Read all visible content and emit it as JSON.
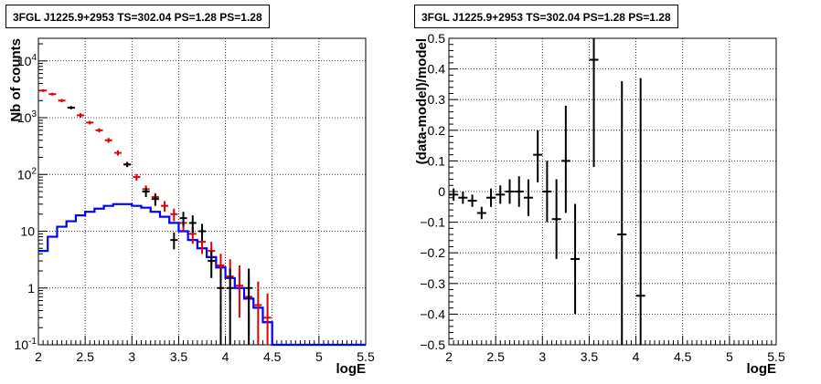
{
  "chart_data": [
    {
      "type": "histogram",
      "title": "3FGL J1225.9+2953 TS=302.04 PS=1.28 PS=1.28",
      "xlabel": "logE",
      "ylabel": "Nb of counts",
      "xlim": [
        2,
        5.5
      ],
      "ylim": [
        0.1,
        25000
      ],
      "yscale": "log",
      "grid": true,
      "x_ticks": [
        "2",
        "2.5",
        "3",
        "3.5",
        "4",
        "4.5",
        "5",
        "5.5"
      ],
      "y_ticks": [
        {
          "value": 0.1,
          "label": "10",
          "exp": "-1"
        },
        {
          "value": 1,
          "label": "1",
          "exp": ""
        },
        {
          "value": 10,
          "label": "10",
          "exp": ""
        },
        {
          "value": 100,
          "label": "10",
          "exp": "2"
        },
        {
          "value": 1000,
          "label": "10",
          "exp": "3"
        },
        {
          "value": 10000,
          "label": "10",
          "exp": "4"
        }
      ],
      "series": [
        {
          "color": "#0000ff",
          "kind": "step",
          "bin_edges": [
            2.0,
            2.1,
            2.2,
            2.3,
            2.4,
            2.5,
            2.6,
            2.7,
            2.8,
            2.9,
            3.0,
            3.1,
            3.2,
            3.3,
            3.4,
            3.5,
            3.6,
            3.7,
            3.8,
            3.9,
            4.0,
            4.1,
            4.2,
            4.3,
            4.4,
            4.5,
            5.5
          ],
          "values": [
            4.5,
            8,
            12,
            15,
            19,
            22,
            25,
            28,
            30,
            30,
            28,
            26,
            22,
            18,
            14,
            10,
            7,
            5,
            3.5,
            2.3,
            1.5,
            1.0,
            0.65,
            0.45,
            0.25,
            0.1
          ]
        },
        {
          "color": "#e00000",
          "kind": "errorbar",
          "x": [
            2.05,
            2.15,
            2.25,
            2.35,
            2.45,
            2.55,
            2.65,
            2.75,
            2.85,
            2.95,
            3.05,
            3.15,
            3.25,
            3.35,
            3.45,
            3.55,
            3.65,
            3.75,
            3.85,
            3.95,
            4.05,
            4.15,
            4.25,
            4.35,
            4.45
          ],
          "y": [
            3000,
            2600,
            2000,
            1500,
            1100,
            820,
            600,
            400,
            240,
            150,
            90,
            55,
            40,
            28,
            20,
            14,
            9,
            6.5,
            4.5,
            2.5,
            1.6,
            1.1,
            0.7,
            0.5,
            0.3
          ],
          "ylow": [
            2850,
            2450,
            1870,
            1400,
            1000,
            760,
            550,
            360,
            215,
            135,
            78,
            46,
            33,
            22,
            15,
            10,
            6,
            4,
            2.5,
            1.2,
            0.6,
            0.3,
            0.15,
            0.1,
            0.1
          ],
          "yhigh": [
            3150,
            2750,
            2130,
            1600,
            1200,
            880,
            650,
            440,
            265,
            165,
            102,
            64,
            47,
            34,
            25,
            18,
            12,
            9,
            6.5,
            4,
            3.2,
            2.5,
            1.8,
            1.3,
            0.8
          ]
        },
        {
          "color": "#000000",
          "kind": "errorbar",
          "x": [
            2.35,
            2.95,
            3.15,
            3.25,
            3.45,
            3.55,
            3.65,
            3.75,
            3.85,
            3.95,
            4.05,
            4.25
          ],
          "y": [
            1500,
            150,
            50,
            37,
            7,
            17,
            14,
            10,
            3,
            1,
            1,
            1
          ],
          "ylow": [
            1420,
            135,
            40,
            28,
            4.8,
            12,
            9.5,
            6.8,
            1.5,
            0.1,
            0.1,
            0.1
          ],
          "yhigh": [
            1580,
            165,
            58,
            45,
            9.5,
            22,
            19,
            13.5,
            4.5,
            2.2,
            2.2,
            2.2
          ]
        }
      ]
    },
    {
      "type": "scatter",
      "title": "3FGL J1225.9+2953 TS=302.04 PS=1.28 PS=1.28",
      "xlabel": "logE",
      "ylabel": "(data-model)/model",
      "xlim": [
        2,
        5.5
      ],
      "ylim": [
        -0.5,
        0.5
      ],
      "grid": true,
      "x_ticks": [
        "2",
        "2.5",
        "3",
        "3.5",
        "4",
        "4.5",
        "5",
        "5.5"
      ],
      "y_ticks": [
        "−0.5",
        "−0.4",
        "−0.3",
        "−0.2",
        "−0.1",
        "0",
        "0.1",
        "0.2",
        "0.3",
        "0.4",
        "0.5"
      ],
      "series": [
        {
          "color": "#000000",
          "x": [
            2.05,
            2.15,
            2.25,
            2.35,
            2.45,
            2.55,
            2.65,
            2.75,
            2.85,
            2.95,
            3.05,
            3.15,
            3.25,
            3.35,
            3.55,
            3.85,
            4.05
          ],
          "y": [
            -0.01,
            -0.02,
            -0.03,
            -0.07,
            -0.02,
            -0.01,
            0.0,
            0.0,
            -0.02,
            0.12,
            0.0,
            -0.09,
            0.1,
            -0.22,
            0.43,
            -0.14,
            -0.34
          ],
          "ylow": [
            -0.03,
            -0.04,
            -0.05,
            -0.09,
            -0.05,
            -0.04,
            -0.04,
            -0.05,
            -0.08,
            0.03,
            -0.1,
            -0.22,
            -0.07,
            -0.4,
            0.08,
            -0.5,
            -0.5
          ],
          "yhigh": [
            0.01,
            0.0,
            -0.01,
            -0.05,
            0.01,
            0.02,
            0.04,
            0.05,
            0.04,
            0.2,
            0.1,
            0.04,
            0.28,
            -0.04,
            0.5,
            0.36,
            0.37
          ]
        }
      ]
    }
  ]
}
